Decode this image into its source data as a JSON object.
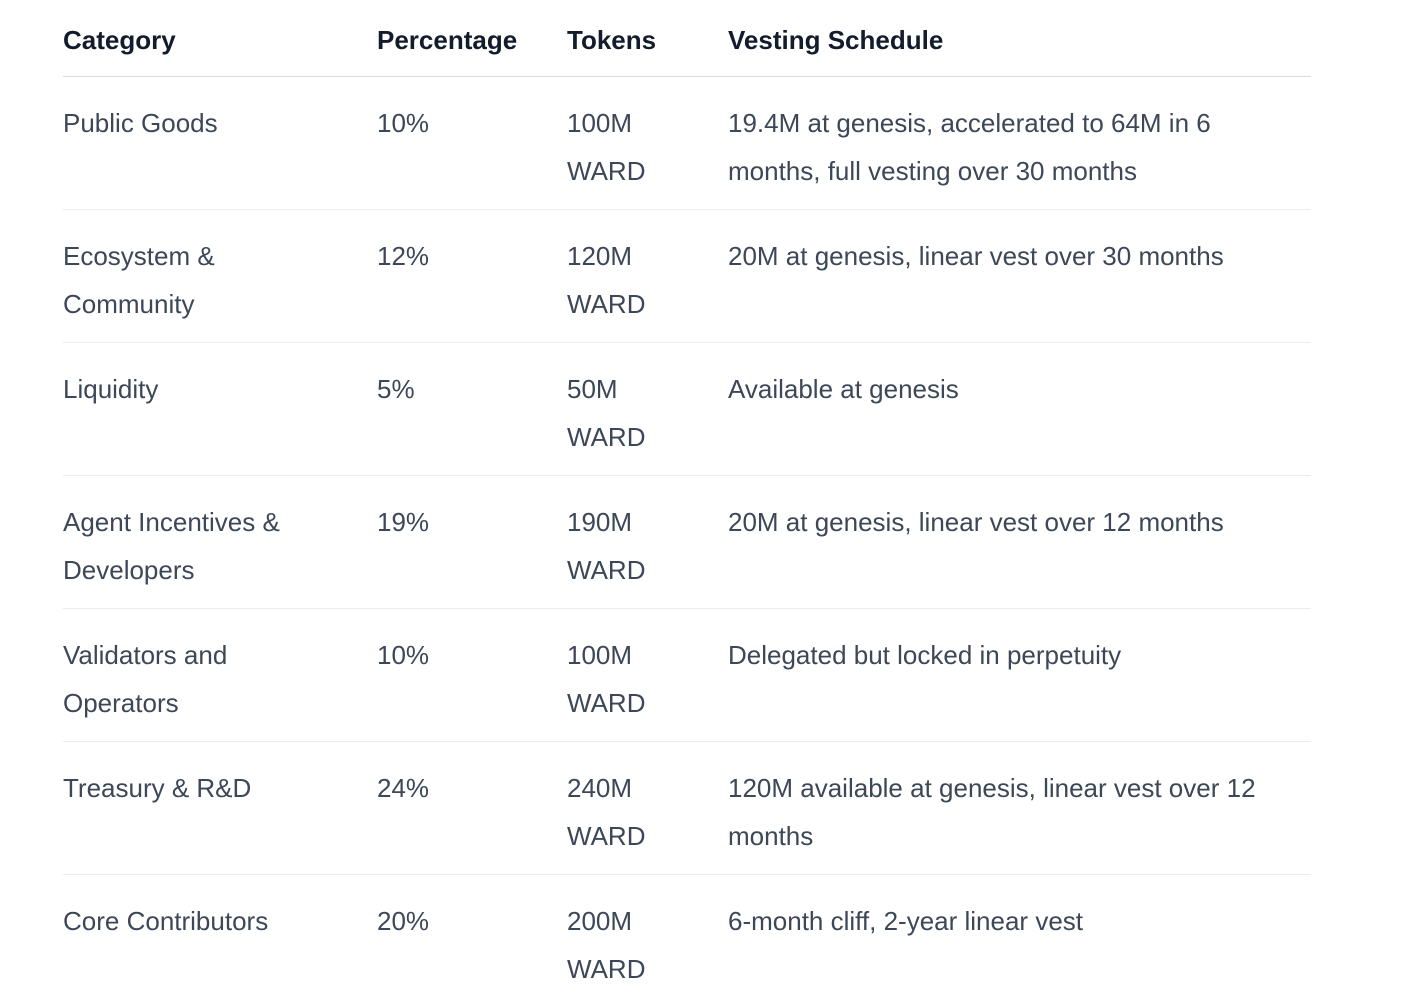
{
  "colors": {
    "background": "#ffffff",
    "header_text": "#131c2c",
    "body_text": "#3d4757",
    "header_border": "#d8dce1",
    "row_border": "#e9ebee"
  },
  "table": {
    "columns": [
      "Category",
      "Percentage",
      "Tokens",
      "Vesting Schedule"
    ],
    "rows": [
      {
        "category": "Public Goods",
        "percentage": "10%",
        "tokens": {
          "amount": "100M",
          "unit": "WARD"
        },
        "vesting": "19.4M at genesis, accelerated to 64M in 6 months, full vesting over 30 months"
      },
      {
        "category": "Ecosystem & Community",
        "percentage": "12%",
        "tokens": {
          "amount": "120M",
          "unit": "WARD"
        },
        "vesting": "20M at genesis, linear vest over 30 months"
      },
      {
        "category": "Liquidity",
        "percentage": "5%",
        "tokens": {
          "amount": "50M",
          "unit": "WARD"
        },
        "vesting": "Available at genesis"
      },
      {
        "category": "Agent Incentives & Developers",
        "percentage": "19%",
        "tokens": {
          "amount": "190M",
          "unit": "WARD"
        },
        "vesting": "20M at genesis, linear vest over 12 months"
      },
      {
        "category": "Validators and Operators",
        "percentage": "10%",
        "tokens": {
          "amount": "100M",
          "unit": "WARD"
        },
        "vesting": "Delegated but locked in perpetuity"
      },
      {
        "category": "Treasury & R&D",
        "percentage": "24%",
        "tokens": {
          "amount": "240M",
          "unit": "WARD"
        },
        "vesting": "120M available at genesis, linear vest over 12 months"
      },
      {
        "category": "Core Contributors",
        "percentage": "20%",
        "tokens": {
          "amount": "200M",
          "unit": "WARD"
        },
        "vesting": "6-month cliff, 2-year linear vest"
      }
    ]
  }
}
